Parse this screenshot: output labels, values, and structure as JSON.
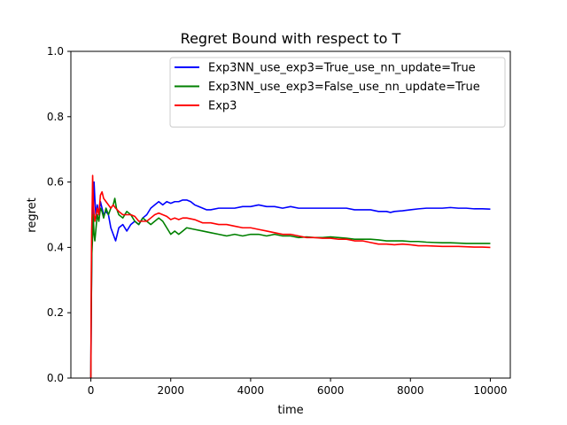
{
  "chart_data": {
    "type": "line",
    "title": "Regret Bound with respect to T",
    "xlabel": "time",
    "ylabel": "regret",
    "xlim": [
      -500,
      10500
    ],
    "ylim": [
      0.0,
      1.0
    ],
    "xticks": [
      0,
      2000,
      4000,
      6000,
      8000,
      10000
    ],
    "xtick_labels": [
      "0",
      "2000",
      "4000",
      "6000",
      "8000",
      "10000"
    ],
    "yticks": [
      0.0,
      0.2,
      0.4,
      0.6,
      0.8,
      1.0
    ],
    "ytick_labels": [
      "0.0",
      "0.2",
      "0.4",
      "0.6",
      "0.8",
      "1.0"
    ],
    "grid": false,
    "legend_position": "top-right",
    "series": [
      {
        "name": "Exp3NN_use_exp3=True_use_nn_update=True",
        "color": "#0000ff",
        "points": [
          [
            0,
            0.0
          ],
          [
            10,
            0.2
          ],
          [
            25,
            0.4
          ],
          [
            40,
            0.47
          ],
          [
            60,
            0.52
          ],
          [
            80,
            0.6
          ],
          [
            100,
            0.55
          ],
          [
            130,
            0.49
          ],
          [
            160,
            0.53
          ],
          [
            200,
            0.5
          ],
          [
            240,
            0.54
          ],
          [
            280,
            0.52
          ],
          [
            320,
            0.5
          ],
          [
            380,
            0.51
          ],
          [
            440,
            0.5
          ],
          [
            500,
            0.46
          ],
          [
            560,
            0.44
          ],
          [
            620,
            0.42
          ],
          [
            700,
            0.46
          ],
          [
            800,
            0.47
          ],
          [
            900,
            0.45
          ],
          [
            1000,
            0.47
          ],
          [
            1100,
            0.48
          ],
          [
            1200,
            0.47
          ],
          [
            1300,
            0.49
          ],
          [
            1400,
            0.5
          ],
          [
            1500,
            0.52
          ],
          [
            1600,
            0.53
          ],
          [
            1700,
            0.54
          ],
          [
            1800,
            0.53
          ],
          [
            1900,
            0.54
          ],
          [
            2000,
            0.535
          ],
          [
            2100,
            0.54
          ],
          [
            2200,
            0.54
          ],
          [
            2300,
            0.545
          ],
          [
            2400,
            0.545
          ],
          [
            2500,
            0.54
          ],
          [
            2600,
            0.53
          ],
          [
            2700,
            0.525
          ],
          [
            2800,
            0.52
          ],
          [
            2900,
            0.515
          ],
          [
            3000,
            0.515
          ],
          [
            3200,
            0.52
          ],
          [
            3400,
            0.52
          ],
          [
            3600,
            0.52
          ],
          [
            3800,
            0.525
          ],
          [
            4000,
            0.525
          ],
          [
            4200,
            0.53
          ],
          [
            4400,
            0.525
          ],
          [
            4600,
            0.525
          ],
          [
            4800,
            0.52
          ],
          [
            5000,
            0.525
          ],
          [
            5200,
            0.52
          ],
          [
            5400,
            0.52
          ],
          [
            5600,
            0.52
          ],
          [
            5800,
            0.52
          ],
          [
            6000,
            0.52
          ],
          [
            6200,
            0.52
          ],
          [
            6400,
            0.52
          ],
          [
            6600,
            0.515
          ],
          [
            6800,
            0.515
          ],
          [
            7000,
            0.515
          ],
          [
            7200,
            0.51
          ],
          [
            7400,
            0.51
          ],
          [
            7500,
            0.507
          ],
          [
            7600,
            0.51
          ],
          [
            7800,
            0.512
          ],
          [
            8000,
            0.515
          ],
          [
            8200,
            0.518
          ],
          [
            8400,
            0.52
          ],
          [
            8600,
            0.52
          ],
          [
            8800,
            0.52
          ],
          [
            9000,
            0.522
          ],
          [
            9200,
            0.52
          ],
          [
            9400,
            0.52
          ],
          [
            9600,
            0.518
          ],
          [
            9800,
            0.518
          ],
          [
            10000,
            0.517
          ]
        ]
      },
      {
        "name": "Exp3NN_use_exp3=False_use_nn_update=True",
        "color": "#008000",
        "points": [
          [
            0,
            0.0
          ],
          [
            10,
            0.2
          ],
          [
            25,
            0.38
          ],
          [
            40,
            0.42
          ],
          [
            60,
            0.5
          ],
          [
            80,
            0.44
          ],
          [
            100,
            0.42
          ],
          [
            130,
            0.46
          ],
          [
            160,
            0.5
          ],
          [
            200,
            0.48
          ],
          [
            240,
            0.52
          ],
          [
            280,
            0.51
          ],
          [
            320,
            0.49
          ],
          [
            380,
            0.52
          ],
          [
            440,
            0.5
          ],
          [
            500,
            0.52
          ],
          [
            560,
            0.53
          ],
          [
            600,
            0.55
          ],
          [
            640,
            0.52
          ],
          [
            700,
            0.5
          ],
          [
            800,
            0.49
          ],
          [
            900,
            0.51
          ],
          [
            1000,
            0.5
          ],
          [
            1100,
            0.48
          ],
          [
            1200,
            0.47
          ],
          [
            1300,
            0.49
          ],
          [
            1400,
            0.48
          ],
          [
            1500,
            0.47
          ],
          [
            1600,
            0.48
          ],
          [
            1700,
            0.49
          ],
          [
            1800,
            0.48
          ],
          [
            1900,
            0.46
          ],
          [
            2000,
            0.44
          ],
          [
            2100,
            0.45
          ],
          [
            2200,
            0.44
          ],
          [
            2300,
            0.45
          ],
          [
            2400,
            0.46
          ],
          [
            2600,
            0.455
          ],
          [
            2800,
            0.45
          ],
          [
            3000,
            0.445
          ],
          [
            3200,
            0.44
          ],
          [
            3400,
            0.435
          ],
          [
            3600,
            0.44
          ],
          [
            3800,
            0.435
          ],
          [
            4000,
            0.44
          ],
          [
            4200,
            0.44
          ],
          [
            4400,
            0.435
          ],
          [
            4600,
            0.44
          ],
          [
            4800,
            0.435
          ],
          [
            5000,
            0.435
          ],
          [
            5200,
            0.43
          ],
          [
            5400,
            0.432
          ],
          [
            5600,
            0.43
          ],
          [
            5800,
            0.43
          ],
          [
            6000,
            0.432
          ],
          [
            6200,
            0.43
          ],
          [
            6400,
            0.428
          ],
          [
            6600,
            0.425
          ],
          [
            6800,
            0.425
          ],
          [
            7000,
            0.425
          ],
          [
            7200,
            0.423
          ],
          [
            7400,
            0.42
          ],
          [
            7600,
            0.42
          ],
          [
            7800,
            0.42
          ],
          [
            8000,
            0.418
          ],
          [
            8200,
            0.418
          ],
          [
            8400,
            0.416
          ],
          [
            8600,
            0.415
          ],
          [
            8800,
            0.414
          ],
          [
            9000,
            0.414
          ],
          [
            9200,
            0.413
          ],
          [
            9400,
            0.412
          ],
          [
            9600,
            0.412
          ],
          [
            9800,
            0.412
          ],
          [
            10000,
            0.412
          ]
        ]
      },
      {
        "name": "Exp3",
        "color": "#ff0000",
        "points": [
          [
            0,
            0.0
          ],
          [
            10,
            0.3
          ],
          [
            20,
            0.45
          ],
          [
            30,
            0.5
          ],
          [
            45,
            0.62
          ],
          [
            60,
            0.55
          ],
          [
            80,
            0.5
          ],
          [
            100,
            0.48
          ],
          [
            130,
            0.5
          ],
          [
            160,
            0.52
          ],
          [
            200,
            0.5
          ],
          [
            240,
            0.56
          ],
          [
            280,
            0.57
          ],
          [
            320,
            0.55
          ],
          [
            380,
            0.54
          ],
          [
            440,
            0.53
          ],
          [
            500,
            0.52
          ],
          [
            560,
            0.53
          ],
          [
            620,
            0.52
          ],
          [
            700,
            0.51
          ],
          [
            800,
            0.5
          ],
          [
            900,
            0.5
          ],
          [
            1000,
            0.5
          ],
          [
            1100,
            0.495
          ],
          [
            1200,
            0.48
          ],
          [
            1300,
            0.48
          ],
          [
            1400,
            0.48
          ],
          [
            1500,
            0.49
          ],
          [
            1600,
            0.5
          ],
          [
            1700,
            0.505
          ],
          [
            1800,
            0.5
          ],
          [
            1900,
            0.495
          ],
          [
            2000,
            0.485
          ],
          [
            2100,
            0.49
          ],
          [
            2200,
            0.485
          ],
          [
            2300,
            0.49
          ],
          [
            2400,
            0.49
          ],
          [
            2600,
            0.485
          ],
          [
            2800,
            0.475
          ],
          [
            3000,
            0.475
          ],
          [
            3200,
            0.47
          ],
          [
            3400,
            0.47
          ],
          [
            3600,
            0.465
          ],
          [
            3800,
            0.46
          ],
          [
            4000,
            0.46
          ],
          [
            4200,
            0.455
          ],
          [
            4400,
            0.45
          ],
          [
            4600,
            0.445
          ],
          [
            4800,
            0.44
          ],
          [
            5000,
            0.44
          ],
          [
            5200,
            0.435
          ],
          [
            5400,
            0.43
          ],
          [
            5600,
            0.43
          ],
          [
            5800,
            0.428
          ],
          [
            6000,
            0.428
          ],
          [
            6200,
            0.425
          ],
          [
            6400,
            0.425
          ],
          [
            6600,
            0.42
          ],
          [
            6800,
            0.42
          ],
          [
            7000,
            0.415
          ],
          [
            7200,
            0.41
          ],
          [
            7400,
            0.41
          ],
          [
            7600,
            0.408
          ],
          [
            7800,
            0.41
          ],
          [
            8000,
            0.408
          ],
          [
            8200,
            0.405
          ],
          [
            8400,
            0.405
          ],
          [
            8600,
            0.404
          ],
          [
            8800,
            0.403
          ],
          [
            9000,
            0.403
          ],
          [
            9200,
            0.403
          ],
          [
            9400,
            0.402
          ],
          [
            9600,
            0.401
          ],
          [
            9800,
            0.401
          ],
          [
            10000,
            0.4
          ]
        ]
      }
    ]
  }
}
